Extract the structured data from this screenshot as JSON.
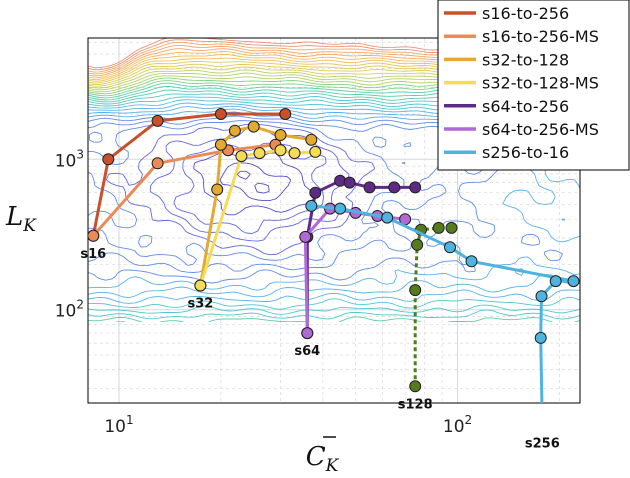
{
  "chart_data": {
    "type": "line",
    "xlabel_base": "C",
    "xlabel_sub": "K",
    "ylabel_base": "L",
    "ylabel_sub": "K",
    "xscale": "log",
    "yscale": "log",
    "xlim": [
      8.1,
      230
    ],
    "ylim": [
      24,
      6400
    ],
    "grid": true,
    "legend_position": "top-right",
    "x_tick_labels": [
      {
        "base": "10",
        "exp": "1"
      },
      {
        "base": "10",
        "exp": "2"
      }
    ],
    "y_tick_labels": [
      {
        "base": "10",
        "exp": "2"
      },
      {
        "base": "10",
        "exp": "3"
      }
    ],
    "background": "contour plot of a loss landscape",
    "series": [
      {
        "name": "s16-to-256",
        "color": "#c8502a",
        "points": [
          [
            8.4,
            310
          ],
          [
            9.3,
            1000
          ],
          [
            13,
            1800
          ],
          [
            20,
            2000
          ],
          [
            31,
            2000
          ]
        ]
      },
      {
        "name": "s16-to-256-MS",
        "color": "#ec8a57",
        "points": [
          [
            8.4,
            310
          ],
          [
            13,
            940
          ],
          [
            21,
            1150
          ],
          [
            29,
            1250
          ]
        ]
      },
      {
        "name": "s32-to-128",
        "color": "#e2aa2e",
        "points": [
          [
            17.4,
            145
          ],
          [
            19.5,
            630
          ],
          [
            20,
            1250
          ],
          [
            22,
            1550
          ],
          [
            25,
            1650
          ],
          [
            30,
            1450
          ],
          [
            37,
            1350
          ]
        ]
      },
      {
        "name": "s32-to-128-MS",
        "color": "#f5dc55",
        "points": [
          [
            17.4,
            145
          ],
          [
            23,
            1050
          ],
          [
            26,
            1100
          ],
          [
            30,
            1150
          ],
          [
            33,
            1100
          ],
          [
            38,
            1120
          ]
        ]
      },
      {
        "name": "s64-to-256",
        "color": "#5e2a86",
        "points": [
          [
            36,
            70
          ],
          [
            36,
            305
          ],
          [
            38,
            600
          ],
          [
            45,
            720
          ],
          [
            48,
            700
          ],
          [
            55,
            650
          ],
          [
            65,
            650
          ],
          [
            75,
            650
          ]
        ]
      },
      {
        "name": "s64-to-256-MS",
        "color": "#b169d6",
        "points": [
          [
            36,
            70
          ],
          [
            35.5,
            305
          ],
          [
            42,
            470
          ],
          [
            50,
            440
          ],
          [
            58,
            420
          ],
          [
            70,
            400
          ]
        ]
      },
      {
        "name": "s128",
        "color": "#557b1f",
        "points": [
          [
            75,
            31
          ],
          [
            75,
            135
          ],
          [
            76,
            270
          ],
          [
            78,
            340
          ],
          [
            88,
            350
          ],
          [
            96,
            350
          ]
        ]
      },
      {
        "name": "s256-to-16",
        "color": "#4fb3e0",
        "points": [
          [
            178,
            17
          ],
          [
            176,
            65
          ],
          [
            177,
            123
          ],
          [
            195,
            155
          ],
          [
            220,
            155
          ],
          [
            110,
            210
          ],
          [
            95,
            260
          ],
          [
            62,
            410
          ],
          [
            45,
            470
          ],
          [
            37,
            490
          ]
        ]
      }
    ],
    "start_labels": [
      {
        "text": "s16",
        "x": 8.4,
        "y": 310
      },
      {
        "text": "s32",
        "x": 17.4,
        "y": 145
      },
      {
        "text": "s64",
        "x": 36,
        "y": 70
      },
      {
        "text": "s128",
        "x": 75,
        "y": 31
      },
      {
        "text": "s256",
        "x": 178,
        "y": 17
      }
    ],
    "legend": [
      "s16-to-256",
      "s16-to-256-MS",
      "s32-to-128",
      "s32-to-128-MS",
      "s64-to-256",
      "s64-to-256-MS",
      "s256-to-16"
    ]
  }
}
